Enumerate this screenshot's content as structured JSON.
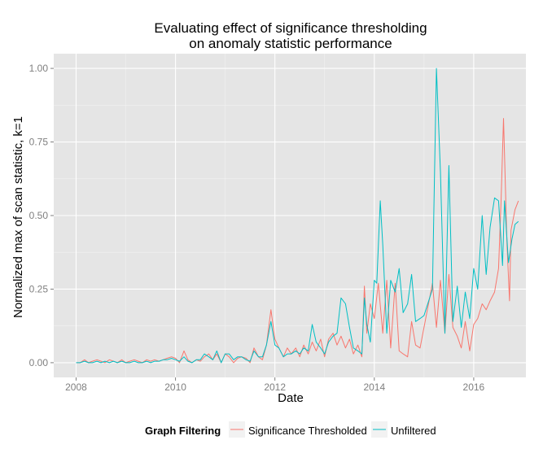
{
  "chart_data": {
    "type": "line",
    "title": [
      "Evaluating effect of significance thresholding",
      "on anomaly statistic performance"
    ],
    "xlabel": "Date",
    "ylabel": "Normalized max of scan statistic, k=1",
    "xlim": [
      2007.55,
      2017.05
    ],
    "ylim": [
      -0.05,
      1.05
    ],
    "x_ticks": [
      {
        "value": 2008,
        "label": "2008"
      },
      {
        "value": 2010,
        "label": "2010"
      },
      {
        "value": 2012,
        "label": "2012"
      },
      {
        "value": 2014,
        "label": "2014"
      },
      {
        "value": 2016,
        "label": "2016"
      }
    ],
    "y_ticks": [
      {
        "value": 0.0,
        "label": "0.00"
      },
      {
        "value": 0.25,
        "label": "0.25"
      },
      {
        "value": 0.5,
        "label": "0.50"
      },
      {
        "value": 0.75,
        "label": "0.75"
      },
      {
        "value": 1.0,
        "label": "1.00"
      }
    ],
    "grid": true,
    "background": "#e5e5e5",
    "legend": {
      "title": "Graph Filtering",
      "position": "bottom",
      "entries": [
        "Significance Thresholded",
        "Unfiltered"
      ]
    },
    "series": [
      {
        "name": "Significance Thresholded",
        "color": "#f8766d",
        "points": [
          [
            2008.0,
            0.0
          ],
          [
            2008.08,
            0.0
          ],
          [
            2008.17,
            0.01
          ],
          [
            2008.25,
            0.0
          ],
          [
            2008.33,
            0.005
          ],
          [
            2008.42,
            0.01
          ],
          [
            2008.5,
            0.005
          ],
          [
            2008.58,
            0.0
          ],
          [
            2008.67,
            0.01
          ],
          [
            2008.75,
            0.005
          ],
          [
            2008.83,
            0.0
          ],
          [
            2008.92,
            0.01
          ],
          [
            2009.0,
            0.0
          ],
          [
            2009.08,
            0.005
          ],
          [
            2009.17,
            0.01
          ],
          [
            2009.25,
            0.005
          ],
          [
            2009.33,
            0.0
          ],
          [
            2009.42,
            0.01
          ],
          [
            2009.5,
            0.005
          ],
          [
            2009.58,
            0.01
          ],
          [
            2009.67,
            0.005
          ],
          [
            2009.75,
            0.01
          ],
          [
            2009.83,
            0.015
          ],
          [
            2009.92,
            0.02
          ],
          [
            2010.0,
            0.015
          ],
          [
            2010.08,
            0.0
          ],
          [
            2010.17,
            0.04
          ],
          [
            2010.25,
            0.01
          ],
          [
            2010.33,
            0.0
          ],
          [
            2010.42,
            0.01
          ],
          [
            2010.5,
            0.005
          ],
          [
            2010.58,
            0.02
          ],
          [
            2010.67,
            0.03
          ],
          [
            2010.75,
            0.01
          ],
          [
            2010.83,
            0.03
          ],
          [
            2010.92,
            0.0
          ],
          [
            2011.0,
            0.03
          ],
          [
            2011.08,
            0.02
          ],
          [
            2011.17,
            0.0
          ],
          [
            2011.25,
            0.015
          ],
          [
            2011.33,
            0.02
          ],
          [
            2011.42,
            0.015
          ],
          [
            2011.5,
            0.0
          ],
          [
            2011.58,
            0.05
          ],
          [
            2011.67,
            0.02
          ],
          [
            2011.75,
            0.01
          ],
          [
            2011.83,
            0.06
          ],
          [
            2011.92,
            0.18
          ],
          [
            2012.0,
            0.08
          ],
          [
            2012.08,
            0.05
          ],
          [
            2012.17,
            0.02
          ],
          [
            2012.25,
            0.05
          ],
          [
            2012.33,
            0.03
          ],
          [
            2012.42,
            0.05
          ],
          [
            2012.5,
            0.02
          ],
          [
            2012.58,
            0.06
          ],
          [
            2012.67,
            0.03
          ],
          [
            2012.75,
            0.07
          ],
          [
            2012.83,
            0.04
          ],
          [
            2012.92,
            0.08
          ],
          [
            2013.0,
            0.02
          ],
          [
            2013.08,
            0.08
          ],
          [
            2013.17,
            0.1
          ],
          [
            2013.25,
            0.06
          ],
          [
            2013.33,
            0.09
          ],
          [
            2013.42,
            0.05
          ],
          [
            2013.5,
            0.08
          ],
          [
            2013.58,
            0.03
          ],
          [
            2013.67,
            0.06
          ],
          [
            2013.75,
            0.02
          ],
          [
            2013.8,
            0.26
          ],
          [
            2013.85,
            0.1
          ],
          [
            2013.92,
            0.2
          ],
          [
            2014.0,
            0.15
          ],
          [
            2014.08,
            0.27
          ],
          [
            2014.17,
            0.1
          ],
          [
            2014.25,
            0.28
          ],
          [
            2014.33,
            0.05
          ],
          [
            2014.42,
            0.27
          ],
          [
            2014.5,
            0.04
          ],
          [
            2014.58,
            0.03
          ],
          [
            2014.67,
            0.02
          ],
          [
            2014.75,
            0.14
          ],
          [
            2014.83,
            0.06
          ],
          [
            2014.92,
            0.05
          ],
          [
            2015.17,
            0.27
          ],
          [
            2015.25,
            0.12
          ],
          [
            2015.33,
            0.28
          ],
          [
            2015.42,
            0.1
          ],
          [
            2015.5,
            0.3
          ],
          [
            2015.58,
            0.12
          ],
          [
            2015.67,
            0.09
          ],
          [
            2015.75,
            0.05
          ],
          [
            2015.83,
            0.14
          ],
          [
            2015.92,
            0.04
          ],
          [
            2016.0,
            0.13
          ],
          [
            2016.08,
            0.15
          ],
          [
            2016.17,
            0.2
          ],
          [
            2016.25,
            0.18
          ],
          [
            2016.33,
            0.21
          ],
          [
            2016.42,
            0.24
          ],
          [
            2016.5,
            0.32
          ],
          [
            2016.55,
            0.55
          ],
          [
            2016.6,
            0.83
          ],
          [
            2016.67,
            0.4
          ],
          [
            2016.72,
            0.21
          ],
          [
            2016.75,
            0.45
          ],
          [
            2016.83,
            0.52
          ],
          [
            2016.9,
            0.55
          ]
        ]
      },
      {
        "name": "Unfiltered",
        "color": "#00bfc4",
        "points": [
          [
            2008.0,
            0.0
          ],
          [
            2008.08,
            0.0
          ],
          [
            2008.17,
            0.005
          ],
          [
            2008.25,
            0.0
          ],
          [
            2008.33,
            0.0
          ],
          [
            2008.42,
            0.005
          ],
          [
            2008.5,
            0.0
          ],
          [
            2008.58,
            0.005
          ],
          [
            2008.67,
            0.0
          ],
          [
            2008.75,
            0.005
          ],
          [
            2008.83,
            0.0
          ],
          [
            2008.92,
            0.005
          ],
          [
            2009.0,
            0.0
          ],
          [
            2009.08,
            0.0
          ],
          [
            2009.17,
            0.005
          ],
          [
            2009.25,
            0.0
          ],
          [
            2009.33,
            0.0
          ],
          [
            2009.42,
            0.005
          ],
          [
            2009.5,
            0.0
          ],
          [
            2009.58,
            0.005
          ],
          [
            2009.67,
            0.005
          ],
          [
            2009.75,
            0.01
          ],
          [
            2009.83,
            0.01
          ],
          [
            2009.92,
            0.015
          ],
          [
            2010.0,
            0.01
          ],
          [
            2010.08,
            0.005
          ],
          [
            2010.17,
            0.02
          ],
          [
            2010.25,
            0.005
          ],
          [
            2010.33,
            0.0
          ],
          [
            2010.42,
            0.01
          ],
          [
            2010.5,
            0.01
          ],
          [
            2010.58,
            0.03
          ],
          [
            2010.67,
            0.02
          ],
          [
            2010.75,
            0.01
          ],
          [
            2010.83,
            0.04
          ],
          [
            2010.92,
            0.0
          ],
          [
            2011.0,
            0.03
          ],
          [
            2011.08,
            0.03
          ],
          [
            2011.17,
            0.01
          ],
          [
            2011.25,
            0.02
          ],
          [
            2011.33,
            0.02
          ],
          [
            2011.42,
            0.01
          ],
          [
            2011.5,
            0.005
          ],
          [
            2011.58,
            0.04
          ],
          [
            2011.67,
            0.02
          ],
          [
            2011.75,
            0.02
          ],
          [
            2011.83,
            0.06
          ],
          [
            2011.92,
            0.14
          ],
          [
            2012.0,
            0.06
          ],
          [
            2012.08,
            0.05
          ],
          [
            2012.17,
            0.02
          ],
          [
            2012.25,
            0.03
          ],
          [
            2012.33,
            0.03
          ],
          [
            2012.42,
            0.04
          ],
          [
            2012.5,
            0.03
          ],
          [
            2012.58,
            0.05
          ],
          [
            2012.67,
            0.04
          ],
          [
            2012.75,
            0.13
          ],
          [
            2012.83,
            0.07
          ],
          [
            2012.92,
            0.05
          ],
          [
            2013.0,
            0.03
          ],
          [
            2013.08,
            0.07
          ],
          [
            2013.17,
            0.09
          ],
          [
            2013.25,
            0.1
          ],
          [
            2013.33,
            0.22
          ],
          [
            2013.42,
            0.2
          ],
          [
            2013.5,
            0.12
          ],
          [
            2013.58,
            0.05
          ],
          [
            2013.67,
            0.04
          ],
          [
            2013.75,
            0.03
          ],
          [
            2013.8,
            0.22
          ],
          [
            2013.85,
            0.13
          ],
          [
            2013.92,
            0.07
          ],
          [
            2014.0,
            0.28
          ],
          [
            2014.05,
            0.27
          ],
          [
            2014.12,
            0.55
          ],
          [
            2014.17,
            0.4
          ],
          [
            2014.25,
            0.1
          ],
          [
            2014.33,
            0.28
          ],
          [
            2014.42,
            0.24
          ],
          [
            2014.5,
            0.32
          ],
          [
            2014.58,
            0.17
          ],
          [
            2014.67,
            0.2
          ],
          [
            2014.75,
            0.3
          ],
          [
            2014.83,
            0.14
          ],
          [
            2014.92,
            0.15
          ],
          [
            2015.0,
            0.16
          ],
          [
            2015.17,
            0.25
          ],
          [
            2015.25,
            1.0
          ],
          [
            2015.33,
            0.65
          ],
          [
            2015.42,
            0.1
          ],
          [
            2015.5,
            0.67
          ],
          [
            2015.58,
            0.14
          ],
          [
            2015.67,
            0.26
          ],
          [
            2015.75,
            0.12
          ],
          [
            2015.83,
            0.24
          ],
          [
            2015.92,
            0.15
          ],
          [
            2016.0,
            0.32
          ],
          [
            2016.08,
            0.25
          ],
          [
            2016.17,
            0.5
          ],
          [
            2016.25,
            0.3
          ],
          [
            2016.33,
            0.46
          ],
          [
            2016.42,
            0.56
          ],
          [
            2016.5,
            0.55
          ],
          [
            2016.58,
            0.33
          ],
          [
            2016.62,
            0.55
          ],
          [
            2016.7,
            0.34
          ],
          [
            2016.77,
            0.42
          ],
          [
            2016.83,
            0.47
          ],
          [
            2016.9,
            0.48
          ]
        ]
      }
    ]
  }
}
